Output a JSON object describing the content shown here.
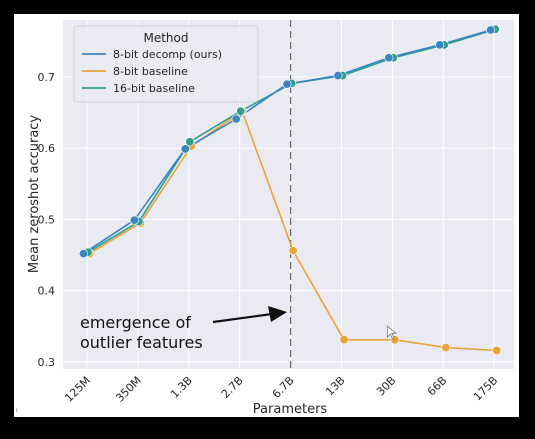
{
  "chart_data": {
    "type": "line",
    "title": "",
    "xlabel": "Parameters",
    "ylabel": "Mean zeroshot accuracy",
    "categories": [
      "125M",
      "350M",
      "1.3B",
      "2.7B",
      "6.7B",
      "13B",
      "30B",
      "66B",
      "175B"
    ],
    "ylim": [
      0.29,
      0.78
    ],
    "yticks": [
      "0.3",
      "0.4",
      "0.5",
      "0.6",
      "0.7"
    ],
    "yticks_values": [
      0.3,
      0.4,
      0.5,
      0.6,
      0.7
    ],
    "grid": true,
    "legend": {
      "title": "Method",
      "position": "top-left"
    },
    "series": [
      {
        "name": "8-bit decomp (ours)",
        "color": "#3b86c1",
        "x": [
          0,
          1,
          2,
          3,
          4,
          5,
          6,
          7,
          8
        ],
        "values": [
          0.452,
          0.499,
          0.599,
          0.641,
          0.69,
          0.702,
          0.727,
          0.745,
          0.766
        ],
        "offset": -0.07
      },
      {
        "name": "8-bit baseline",
        "color": "#e8a33a",
        "x": [
          0,
          1,
          2,
          3,
          4,
          5,
          6,
          7,
          8
        ],
        "values": [
          0.452,
          0.495,
          0.603,
          0.652,
          0.456,
          0.331,
          0.331,
          0.32,
          0.316
        ],
        "offset": 0.05
      },
      {
        "name": "16-bit baseline",
        "color": "#2f9e8c",
        "x": [
          0,
          1,
          2,
          3,
          4,
          5,
          6,
          7,
          8
        ],
        "values": [
          0.454,
          0.497,
          0.609,
          0.652,
          0.691,
          0.702,
          0.727,
          0.745,
          0.767
        ],
        "offset": 0.02
      }
    ],
    "vline_category_index": 4,
    "annotation": {
      "line1": "emergence of",
      "line2": "outlier features"
    },
    "cursor_marker": {
      "x_index": 5.9,
      "y": 0.339
    },
    "stray_mark": "ᵢ"
  }
}
